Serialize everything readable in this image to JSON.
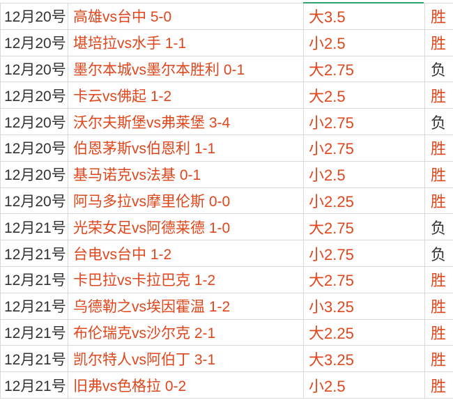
{
  "colors": {
    "win": "#e0461c",
    "loss": "#333333",
    "text_red": "#e0461c",
    "active_cell_border": "#2fa36b"
  },
  "rows": [
    {
      "date": "12月20号",
      "match": "高雄vs台中  5-0",
      "line": "大3.5",
      "result": "胜"
    },
    {
      "date": "12月20号",
      "match": "堪培拉vs水手  1-1",
      "line": "小2.5",
      "result": "胜"
    },
    {
      "date": "12月20号",
      "match": "墨尔本城vs墨尔本胜利  0-1",
      "line": "大2.75",
      "result": "负"
    },
    {
      "date": "12月20号",
      "match": "卡云vs佛起  1-2",
      "line": "大2.5",
      "result": "胜"
    },
    {
      "date": "12月20号",
      "match": "沃尔夫斯堡vs弗莱堡  3-4",
      "line": "小2.75",
      "result": "负"
    },
    {
      "date": "12月20号",
      "match": "伯恩茅斯vs伯恩利  1-1",
      "line": "小2.75",
      "result": "胜"
    },
    {
      "date": "12月20号",
      "match": "基马诺克vs法基  0-1",
      "line": "小2.5",
      "result": "胜"
    },
    {
      "date": "12月20号",
      "match": "阿马多拉vs摩里伦斯  0-0",
      "line": "小2.25",
      "result": "胜"
    },
    {
      "date": "12月21号",
      "match": "光荣女足vs阿德莱德  1-0",
      "line": "大2.75",
      "result": "负"
    },
    {
      "date": "12月21号",
      "match": "台电vs台中  1-2",
      "line": "小2.75",
      "result": "负"
    },
    {
      "date": "12月21号",
      "match": "卡巴拉vs卡拉巴克  1-2",
      "line": "大2.75",
      "result": "胜"
    },
    {
      "date": "12月21号",
      "match": "乌德勒之vs埃因霍温  1-2",
      "line": "小3.25",
      "result": "胜"
    },
    {
      "date": "12月21号",
      "match": "布伦瑞克vs沙尔克  2-1",
      "line": "大2.25",
      "result": "胜"
    },
    {
      "date": "12月21号",
      "match": "凯尔特人vs阿伯丁  3-1",
      "line": "大3.25",
      "result": "胜"
    },
    {
      "date": "12月21号",
      "match": "旧弗vs色格拉  0-2",
      "line": "小2.5",
      "result": "胜"
    }
  ]
}
